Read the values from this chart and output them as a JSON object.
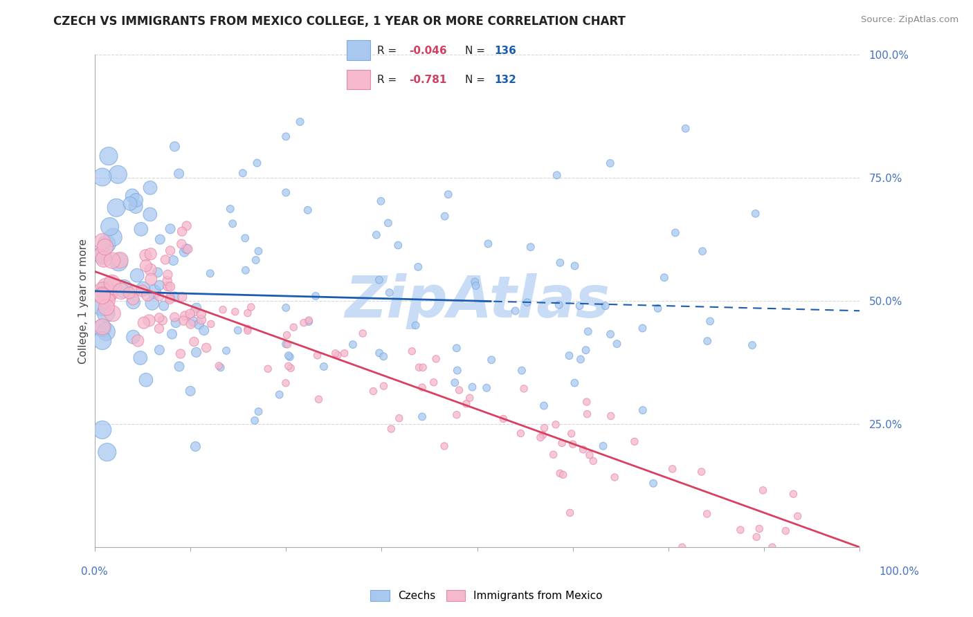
{
  "title": "CZECH VS IMMIGRANTS FROM MEXICO COLLEGE, 1 YEAR OR MORE CORRELATION CHART",
  "source": "Source: ZipAtlas.com",
  "ylabel": "College, 1 year or more",
  "blue_R": "-0.046",
  "blue_N": "136",
  "pink_R": "-0.781",
  "pink_N": "132",
  "blue_color": "#A8C8F0",
  "blue_edge_color": "#7AAAE0",
  "pink_color": "#F5B8CC",
  "pink_edge_color": "#E888A8",
  "blue_line_color": "#1A5DB0",
  "pink_line_color": "#D94060",
  "watermark": "ZipAtlas",
  "watermark_color": "#C8DCF5",
  "legend_label_blue": "Czechs",
  "legend_label_pink": "Immigrants from Mexico",
  "blue_R_color": "#D04060",
  "blue_N_color": "#1A5DB0",
  "pink_R_color": "#D04060",
  "pink_N_color": "#1A5DB0",
  "xmin": 0.0,
  "xmax": 1.0,
  "ymin": 0.0,
  "ymax": 1.0,
  "blue_intercept": 0.52,
  "blue_slope": -0.04,
  "pink_intercept": 0.56,
  "pink_slope": -0.56,
  "grid_color": "#CCCCCC",
  "axis_label_color": "#4472C4",
  "title_color": "#222222",
  "source_color": "#888888"
}
